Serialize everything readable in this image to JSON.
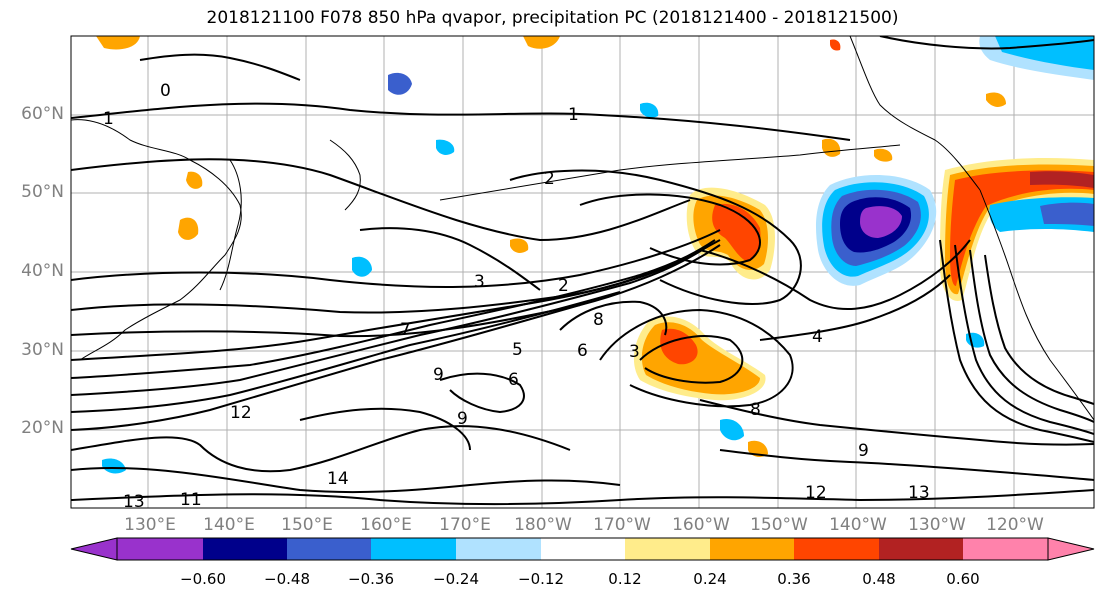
{
  "title": "2018121100 F078 850 hPa qvapor, precipitation PC (2018121400 - 2018121500)",
  "map": {
    "lat_ticks": [
      "60°N",
      "50°N",
      "40°N",
      "30°N",
      "20°N"
    ],
    "lon_ticks": [
      "130°E",
      "140°E",
      "150°E",
      "160°E",
      "170°E",
      "180°W",
      "170°W",
      "160°W",
      "150°W",
      "140°W",
      "130°W",
      "120°W"
    ],
    "contour_labels": [
      "0",
      "1",
      "1",
      "2",
      "2",
      "3",
      "3",
      "4",
      "5",
      "6",
      "6",
      "7",
      "8",
      "8",
      "9",
      "9",
      "9",
      "11",
      "12",
      "12",
      "13",
      "13",
      "14"
    ],
    "colorbar": {
      "tick_labels": [
        "−0.60",
        "−0.48",
        "−0.36",
        "−0.24",
        "−0.12",
        "0.12",
        "0.24",
        "0.36",
        "0.48",
        "0.60"
      ],
      "colors": [
        "#9932CC",
        "#00008B",
        "#3A5FCD",
        "#00BFFF",
        "#B0E2FF",
        "#FFFFFF",
        "#FFEC8B",
        "#FFA500",
        "#FF4500",
        "#B22222",
        "#FF82AB"
      ]
    },
    "shading_colors": {
      "pos_low": "#FFEC8B",
      "pos_mid": "#FFA500",
      "pos_high": "#FF4500",
      "pos_max": "#B22222",
      "neg_low": "#B0E2FF",
      "neg_mid": "#00BFFF",
      "neg_high": "#3A5FCD",
      "neg_max": "#00008B",
      "neg_ext": "#9932CC"
    }
  }
}
